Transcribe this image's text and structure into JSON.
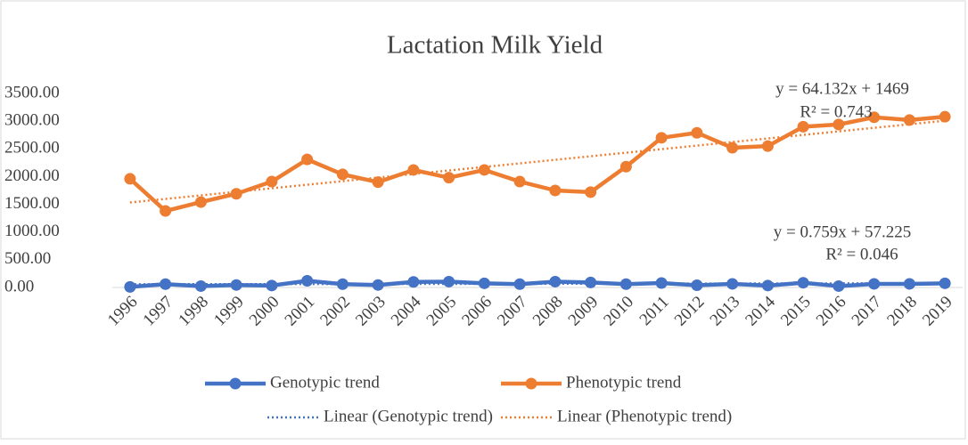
{
  "chart_data": {
    "type": "line",
    "title": "Lactation Milk Yield",
    "categories": [
      "1996",
      "1997",
      "1998",
      "1999",
      "2000",
      "2001",
      "2002",
      "2003",
      "2004",
      "2005",
      "2006",
      "2007",
      "2008",
      "2009",
      "2010",
      "2011",
      "2012",
      "2013",
      "2014",
      "2015",
      "2016",
      "2017",
      "2018",
      "2019"
    ],
    "series": [
      {
        "name": "Genotypic trend",
        "color": "#4472c4",
        "values": [
          10,
          60,
          25,
          45,
          35,
          120,
          60,
          45,
          100,
          105,
          75,
          60,
          105,
          90,
          60,
          80,
          40,
          65,
          35,
          85,
          25,
          65,
          65,
          75
        ],
        "trend": {
          "name": "Linear (Genotypic trend)",
          "slope": 0.759,
          "intercept": 57.225,
          "equation": "y = 0.759x + 57.225",
          "r2": "R² = 0.046"
        }
      },
      {
        "name": "Phenotypic trend",
        "color": "#ed7d31",
        "values": [
          1960,
          1380,
          1540,
          1690,
          1910,
          2310,
          2040,
          1900,
          2120,
          1980,
          2120,
          1910,
          1750,
          1720,
          2180,
          2700,
          2790,
          2520,
          2550,
          2900,
          2940,
          3070,
          3020,
          3080
        ],
        "trend": {
          "name": "Linear (Phenotypic trend)",
          "slope": 64.132,
          "intercept": 1469,
          "equation": "y = 64.132x + 1469",
          "r2": "R² = 0.743"
        }
      }
    ],
    "ylim": [
      0,
      3500
    ],
    "yticks": [
      {
        "value": 0,
        "label": "0.00"
      },
      {
        "value": 500,
        "label": "500.00"
      },
      {
        "value": 1000,
        "label": "1000.00"
      },
      {
        "value": 1500,
        "label": "1500.00"
      },
      {
        "value": 2000,
        "label": "2000.00"
      },
      {
        "value": 2500,
        "label": "2500.00"
      },
      {
        "value": 3000,
        "label": "3000.00"
      },
      {
        "value": 3500,
        "label": "3500.00"
      }
    ],
    "grid": false,
    "legend": "bottom"
  }
}
